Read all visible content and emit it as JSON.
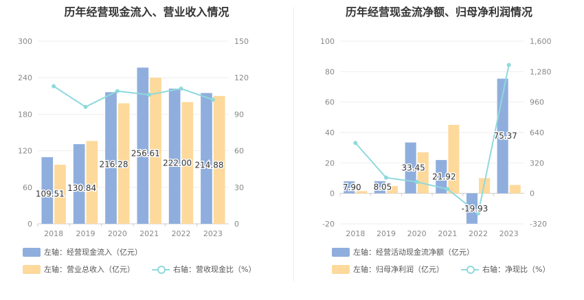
{
  "colors": {
    "blue": "#8faedd",
    "orange": "#fdd99b",
    "line": "#8ed9dc",
    "axis": "#888888",
    "grid": "#eeeeee"
  },
  "chart_data": [
    {
      "type": "bar",
      "title": "历年经营现金流入、营业收入情况",
      "categories": [
        "2018",
        "2019",
        "2020",
        "2021",
        "2022",
        "2023"
      ],
      "y_left": {
        "ticks": [
          "0",
          "60",
          "120",
          "180",
          "240",
          "300"
        ],
        "range": [
          0,
          300
        ]
      },
      "y_right": {
        "ticks": [
          "0",
          "30",
          "60",
          "90",
          "120",
          "150"
        ],
        "range": [
          0,
          150
        ]
      },
      "series": [
        {
          "name": "左轴：经营现金流入（亿元）",
          "axis": "left",
          "type": "bar",
          "color": "#8faedd",
          "values": [
            109.51,
            130.84,
            216.28,
            256.61,
            222.0,
            214.88
          ],
          "labels": [
            "109.51",
            "130.84",
            "216.28",
            "256.61",
            "222.00",
            "214.88"
          ]
        },
        {
          "name": "左轴：营业总收入（亿元）",
          "axis": "left",
          "type": "bar",
          "color": "#fdd99b",
          "values": [
            97,
            136,
            198,
            240,
            200,
            210
          ]
        },
        {
          "name": "右轴：营收现金比（%）",
          "axis": "right",
          "type": "line",
          "color": "#8ed9dc",
          "values": [
            113,
            96,
            109,
            106,
            111,
            102
          ]
        }
      ]
    },
    {
      "type": "bar",
      "title": "历年经营现金流净额、归母净利润情况",
      "categories": [
        "2018",
        "2019",
        "2020",
        "2021",
        "2022",
        "2023"
      ],
      "y_left": {
        "ticks": [
          "-20",
          "0",
          "20",
          "40",
          "60",
          "80",
          "100"
        ],
        "range": [
          -20,
          100
        ]
      },
      "y_right": {
        "ticks": [
          "-320",
          "0",
          "320",
          "640",
          "960",
          "1,280",
          "1,600"
        ],
        "range": [
          -320,
          1600
        ]
      },
      "series": [
        {
          "name": "左轴：经营活动现金流净额（亿元）",
          "axis": "left",
          "type": "bar",
          "color": "#8faedd",
          "values": [
            7.9,
            8.05,
            33.45,
            21.92,
            -19.93,
            75.37
          ],
          "labels": [
            "7.90",
            "8.05",
            "33.45",
            "21.92",
            "-19.93",
            "75.37"
          ]
        },
        {
          "name": "左轴：归母净利润（亿元）",
          "axis": "left",
          "type": "bar",
          "color": "#fdd99b",
          "values": [
            1.5,
            4.8,
            27,
            45,
            10,
            5.5
          ]
        },
        {
          "name": "右轴：净现比（%）",
          "axis": "right",
          "type": "line",
          "color": "#8ed9dc",
          "values": [
            530,
            165,
            120,
            45,
            -210,
            1350
          ]
        }
      ]
    }
  ]
}
